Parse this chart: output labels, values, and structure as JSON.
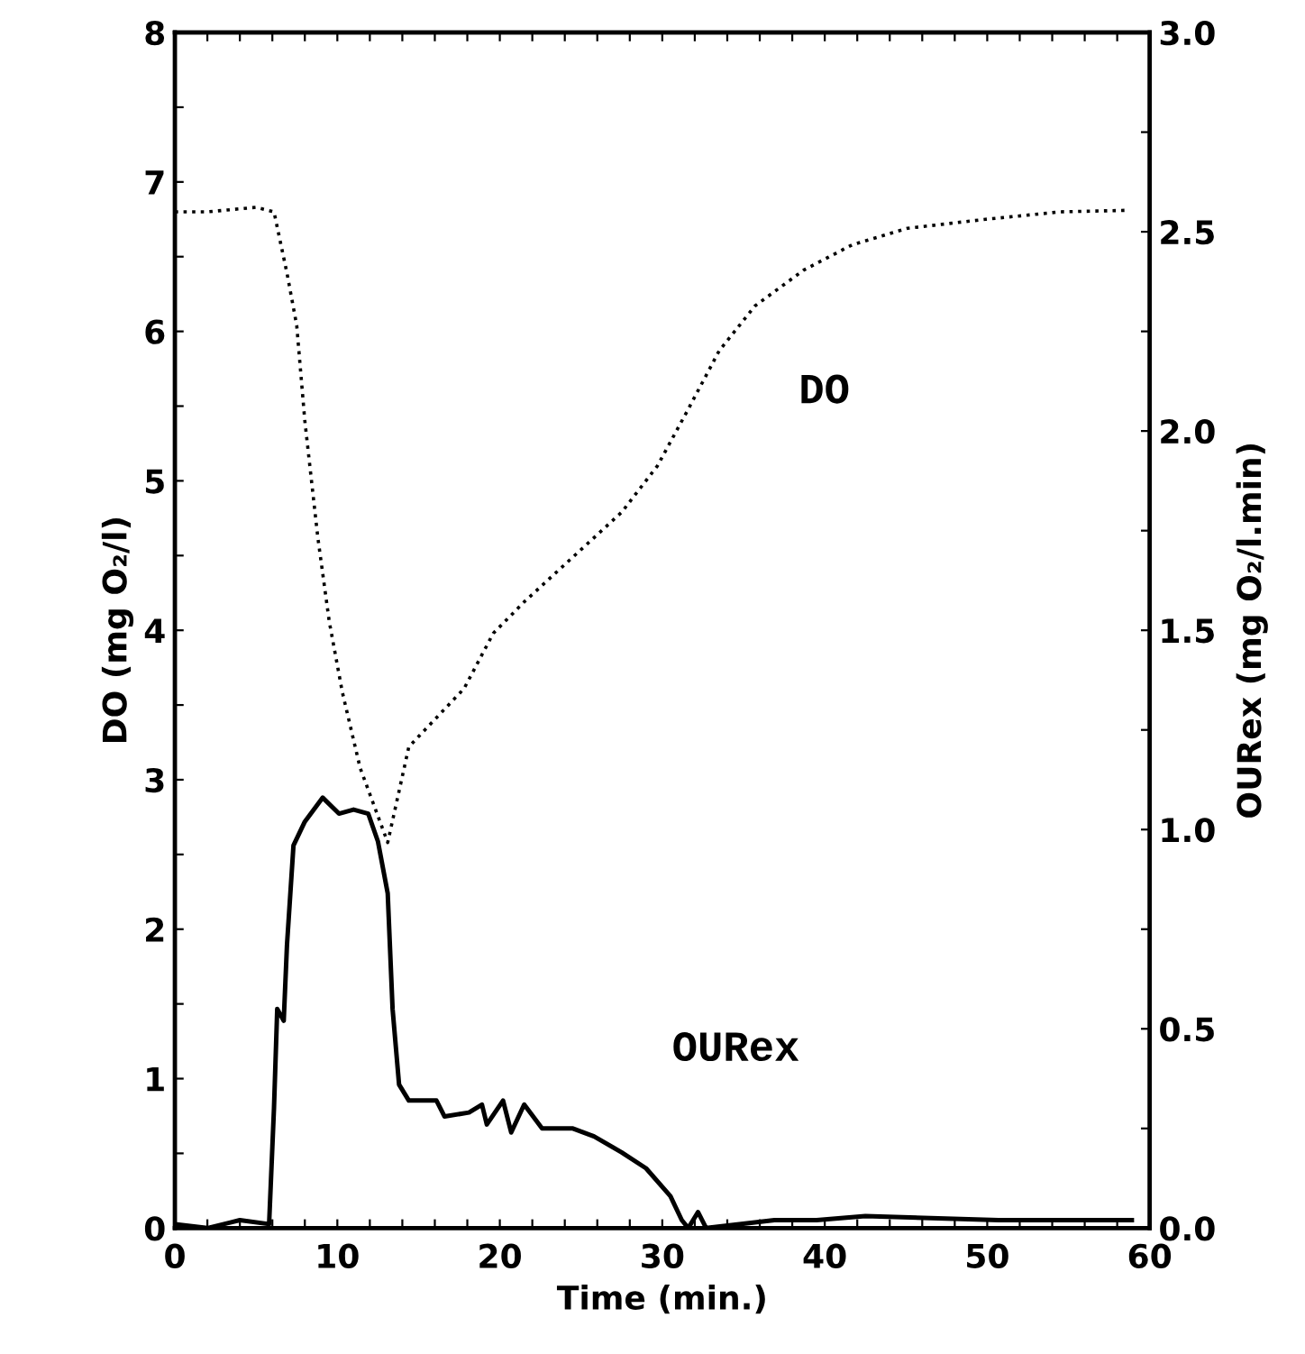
{
  "chart_data": {
    "type": "line",
    "xlabel": "Time (min.)",
    "ylabel": "DO (mg O₂/l)",
    "y2label": "OURex (mg O₂/l.min)",
    "xlim": [
      0,
      60
    ],
    "ylim": [
      0,
      8
    ],
    "y2lim": [
      0,
      3
    ],
    "xticks": [
      0,
      {
        "value": 2,
        "label": null
      },
      {
        "value": 4,
        "label": null
      },
      {
        "value": 6,
        "label": null
      },
      {
        "value": 8,
        "label": null
      },
      10,
      {
        "value": 12,
        "label": null
      },
      {
        "value": 14,
        "label": null
      },
      {
        "value": 16,
        "label": null
      },
      {
        "value": 18,
        "label": null
      },
      20,
      {
        "value": 22,
        "label": null
      },
      {
        "value": 24,
        "label": null
      },
      {
        "value": 26,
        "label": null
      },
      {
        "value": 28,
        "label": null
      },
      30,
      {
        "value": 32,
        "label": null
      },
      {
        "value": 34,
        "label": null
      },
      {
        "value": 36,
        "label": null
      },
      {
        "value": 38,
        "label": null
      },
      40,
      {
        "value": 42,
        "label": null
      },
      {
        "value": 44,
        "label": null
      },
      {
        "value": 46,
        "label": null
      },
      {
        "value": 48,
        "label": null
      },
      50,
      {
        "value": 52,
        "label": null
      },
      {
        "value": 54,
        "label": null
      },
      {
        "value": 56,
        "label": null
      },
      {
        "value": 58,
        "label": null
      },
      60
    ],
    "yticks": [
      0,
      {
        "value": 0.5,
        "label": null
      },
      1,
      {
        "value": 1.5,
        "label": null
      },
      2,
      {
        "value": 2.5,
        "label": null
      },
      3,
      {
        "value": 3.5,
        "label": null
      },
      4,
      {
        "value": 4.5,
        "label": null
      },
      5,
      {
        "value": 5.5,
        "label": null
      },
      6,
      {
        "value": 6.5,
        "label": null
      },
      7,
      {
        "value": 7.5,
        "label": null
      },
      8
    ],
    "y2ticks": [
      {
        "value": 0,
        "label": "0.0"
      },
      {
        "value": 0.25,
        "label": null
      },
      {
        "value": 0.5,
        "label": "0.5"
      },
      {
        "value": 0.75,
        "label": null
      },
      {
        "value": 1,
        "label": "1.0"
      },
      {
        "value": 1.25,
        "label": null
      },
      {
        "value": 1.5,
        "label": "1.5"
      },
      {
        "value": 1.75,
        "label": null
      },
      {
        "value": 2,
        "label": "2.0"
      },
      {
        "value": 2.25,
        "label": null
      },
      {
        "value": 2.5,
        "label": "2.5"
      },
      {
        "value": 2.75,
        "label": null
      },
      {
        "value": 3,
        "label": "3.0"
      }
    ],
    "grid": false,
    "legend": false,
    "series": [
      {
        "name": "DO",
        "color": "#000000",
        "line_style": "dotted",
        "x": [
          0,
          2.0,
          5.0,
          6.1,
          6.9,
          7.5,
          8.0,
          8.8,
          9.5,
          10.3,
          11.4,
          13.1,
          14.4,
          17.8,
          19.6,
          21.5,
          24.5,
          27.5,
          29.7,
          31.6,
          33.5,
          35.7,
          38.7,
          41.7,
          45.1,
          49.9,
          54.5,
          58.6
        ],
        "values": [
          6.8,
          6.8,
          6.83,
          6.8,
          6.39,
          6.04,
          5.4,
          4.62,
          4.06,
          3.59,
          3.08,
          2.58,
          3.22,
          3.61,
          3.98,
          4.19,
          4.49,
          4.79,
          5.1,
          5.48,
          5.87,
          6.17,
          6.41,
          6.58,
          6.69,
          6.75,
          6.8,
          6.81
        ]
      },
      {
        "name": "OURex",
        "color": "#000000",
        "line_style": "solid",
        "axis": "y2",
        "x": [
          0,
          2,
          4,
          5.8,
          6.1,
          6.3,
          6.7,
          6.9,
          7.3,
          8.0,
          9.1,
          10.1,
          11.0,
          11.9,
          12.5,
          13.1,
          13.4,
          13.8,
          14.4,
          16.1,
          16.6,
          18.1,
          18.9,
          19.2,
          20.2,
          20.7,
          21.5,
          22.6,
          24.5,
          25.8,
          27.5,
          29.0,
          30.5,
          31.2,
          31.6,
          32.2,
          32.7,
          36.9,
          39.5,
          42.5,
          50.7,
          58.9
        ],
        "values": [
          0.01,
          0.0,
          0.02,
          0.01,
          0.3,
          0.55,
          0.52,
          0.71,
          0.96,
          1.02,
          1.08,
          1.04,
          1.05,
          1.04,
          0.97,
          0.84,
          0.55,
          0.36,
          0.32,
          0.32,
          0.28,
          0.29,
          0.31,
          0.26,
          0.32,
          0.24,
          0.31,
          0.25,
          0.25,
          0.23,
          0.19,
          0.15,
          0.08,
          0.02,
          0.0,
          0.04,
          0.0,
          0.02,
          0.02,
          0.03,
          0.02,
          0.02
        ]
      }
    ]
  }
}
